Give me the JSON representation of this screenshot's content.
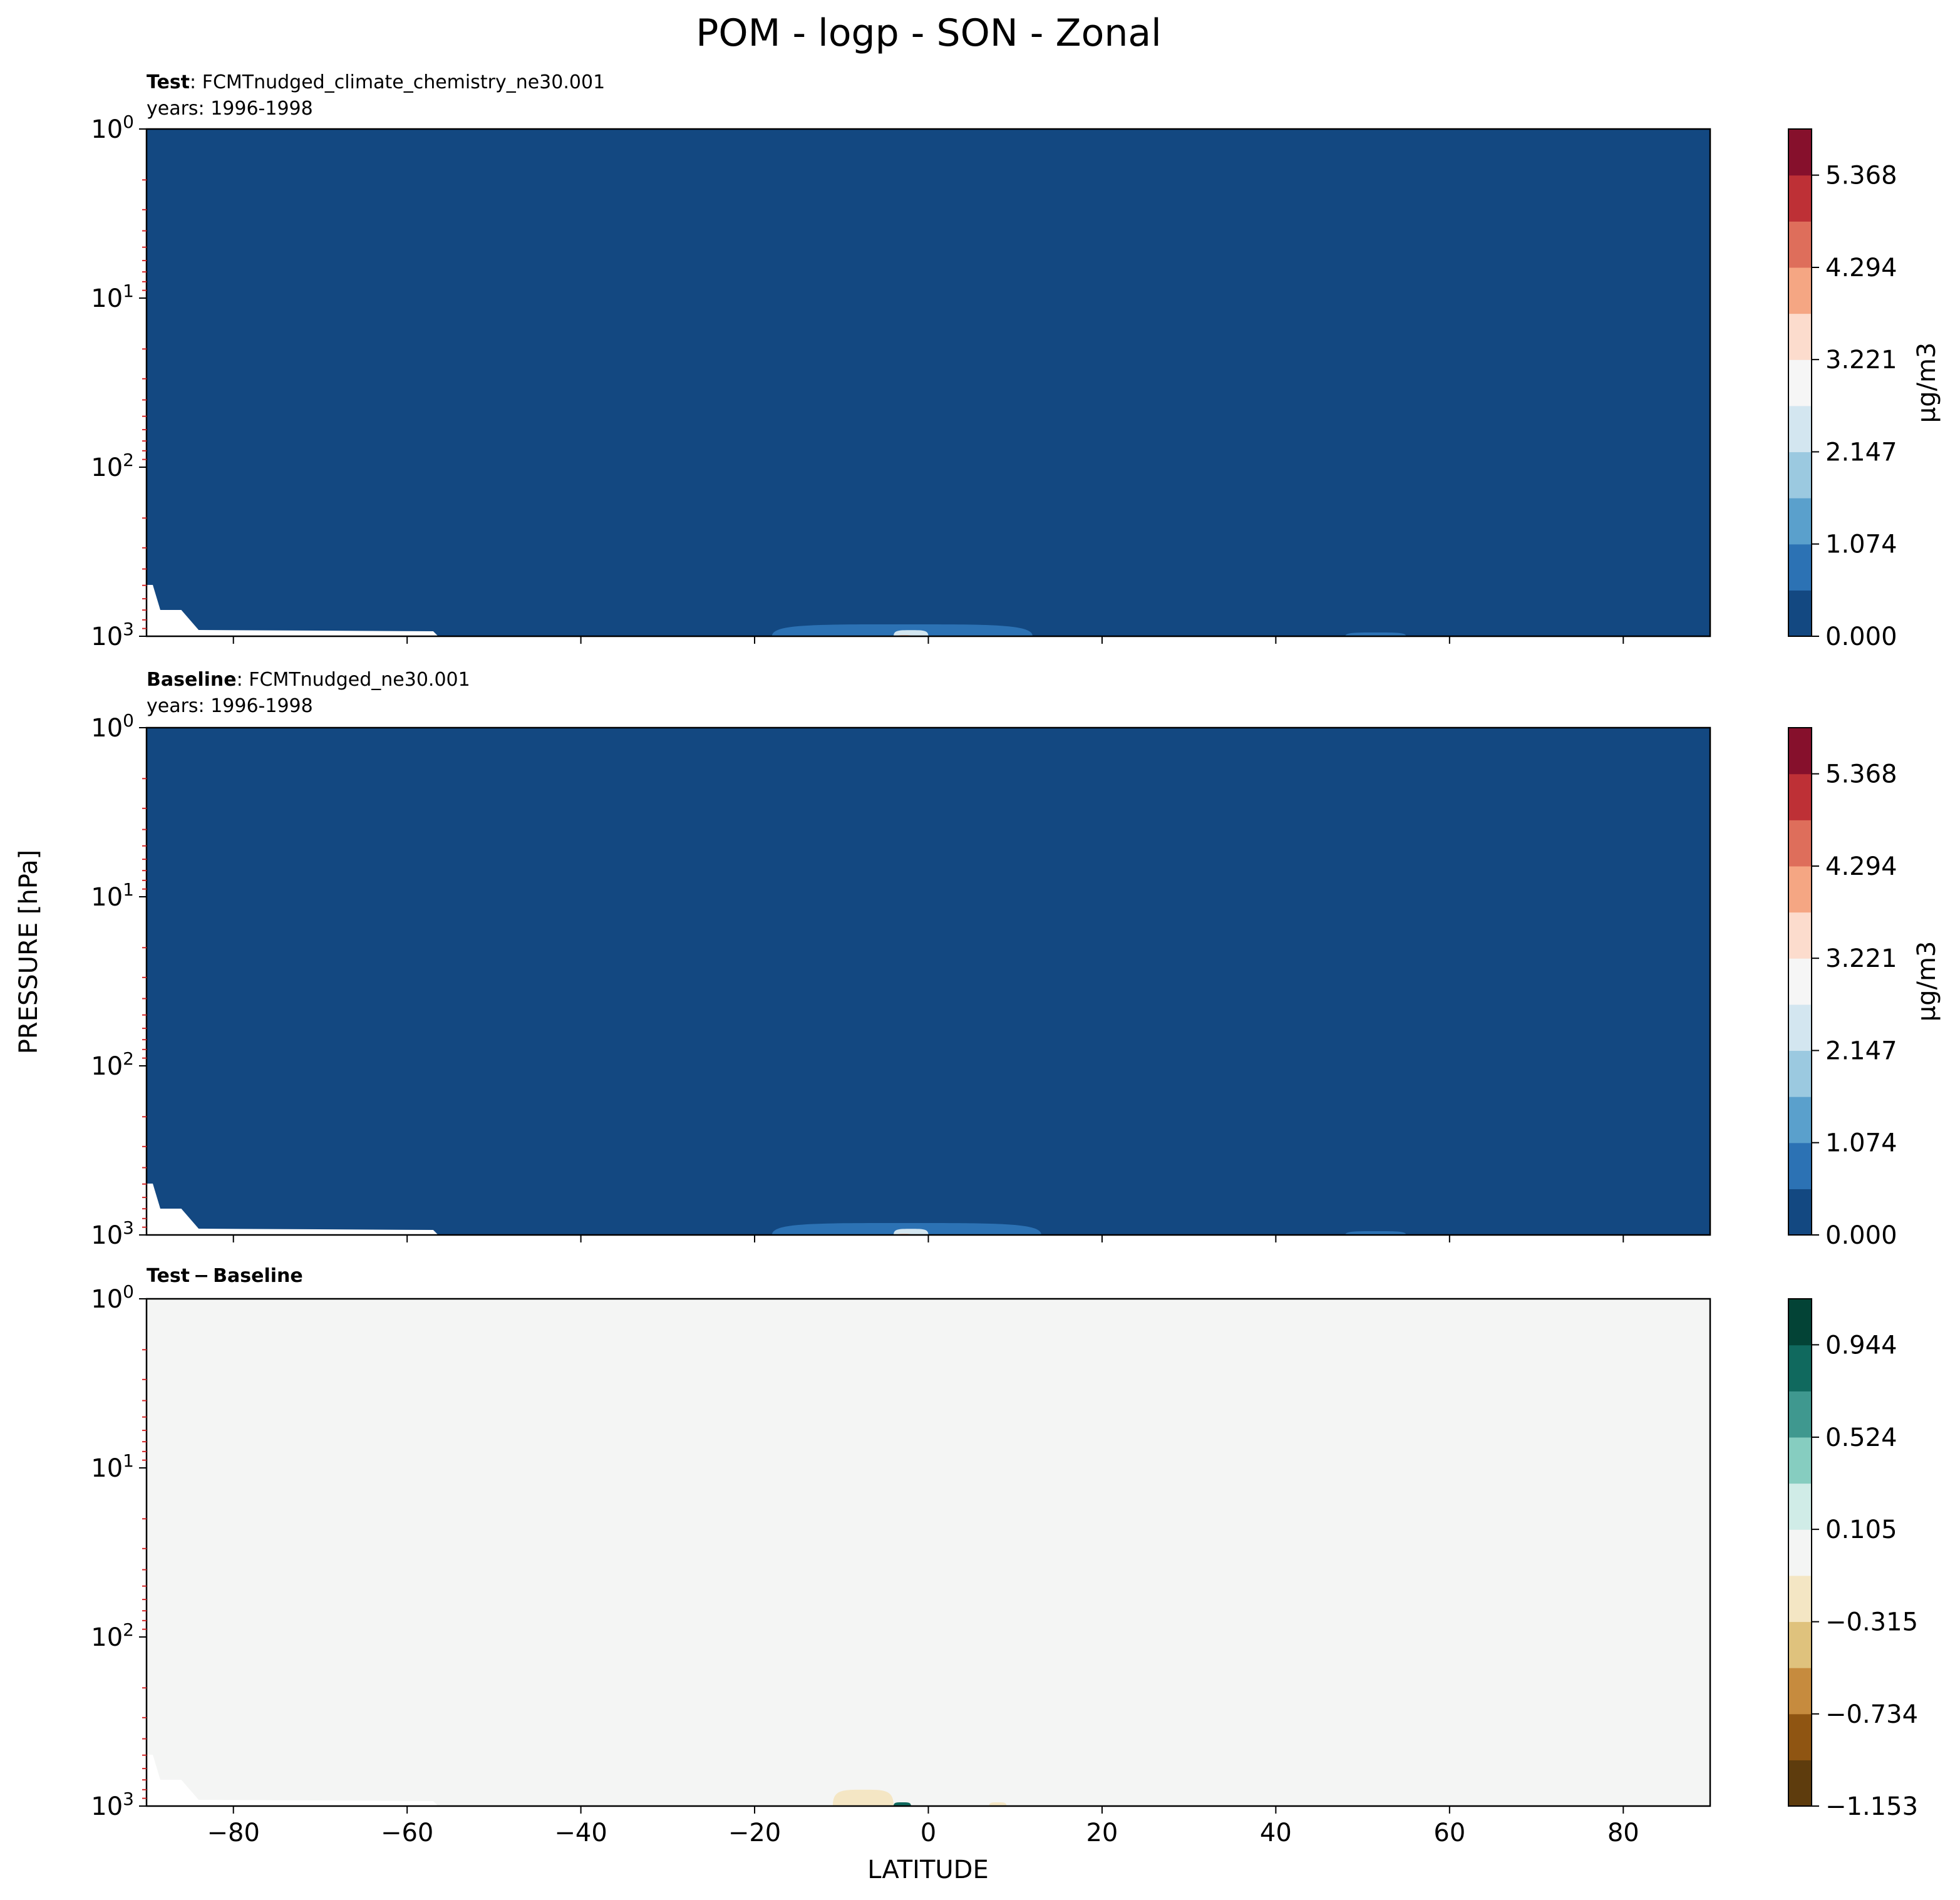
{
  "figure": {
    "suptitle": "POM - logp - SON - Zonal",
    "ylabel": "PRESSURE [hPa]",
    "xlabel": "LATITUDE"
  },
  "panels": [
    {
      "id": "test",
      "title_bold": "Test",
      "title_sep": ": ",
      "title_rest": "FCMTnudged_climate_chemistry_ne30.001",
      "subtitle": "years: 1996-1998",
      "colorbar_label": "μg/m3",
      "colorbar_ticks": [
        "0.000",
        "1.074",
        "2.147",
        "3.221",
        "4.294",
        "5.368"
      ]
    },
    {
      "id": "baseline",
      "title_bold": "Baseline",
      "title_sep": ": ",
      "title_rest": "FCMTnudged_ne30.001",
      "subtitle": "years: 1996-1998",
      "colorbar_label": "μg/m3",
      "colorbar_ticks": [
        "0.000",
        "1.074",
        "2.147",
        "3.221",
        "4.294",
        "5.368"
      ]
    },
    {
      "id": "diff",
      "title_bold": "Test − Baseline",
      "title_sep": "",
      "title_rest": "",
      "subtitle": "",
      "colorbar_label": "",
      "colorbar_ticks": [
        "−1.153",
        "−0.734",
        "−0.315",
        "0.105",
        "0.524",
        "0.944"
      ]
    }
  ],
  "colors": {
    "seq_levels": [
      "#134881",
      "#2c72b4",
      "#5aa0cc",
      "#9bc9e0",
      "#d3e6f0",
      "#f6f6f6",
      "#fcdccd",
      "#f5a683",
      "#de6e5b",
      "#be3036",
      "#86102c"
    ],
    "div_levels": [
      "#5e3c0d",
      "#8f5512",
      "#c68b3e",
      "#dfc27d",
      "#f4e6c4",
      "#f4f5f4",
      "#d0ece7",
      "#86cdc0",
      "#3f988f",
      "#10695e",
      "#034336"
    ],
    "minor_tick": "#d62728"
  },
  "chart_data": [
    {
      "type": "heatmap",
      "title": "Test: FCMTnudged_climate_chemistry_ne30.001",
      "subtitle": "years: 1996-1998",
      "xlabel": "LATITUDE",
      "ylabel": "PRESSURE [hPa]",
      "xlim": [
        -90,
        90
      ],
      "ylim": [
        1000,
        1
      ],
      "yscale": "log",
      "x_ticks": [
        -80,
        -60,
        -40,
        -20,
        0,
        20,
        40,
        60,
        80
      ],
      "y_ticks": [
        "10^0",
        "10^1",
        "10^2",
        "10^3"
      ],
      "x_ticklabels_shown": false,
      "colorbar_label": "μg/m3",
      "colorbar_ticks": [
        0.0,
        1.074,
        2.147,
        3.221,
        4.294,
        5.368
      ],
      "levels": [
        0.0,
        0.537,
        1.074,
        1.611,
        2.147,
        2.684,
        3.221,
        3.758,
        4.294,
        4.831,
        5.368,
        5.905
      ],
      "background_level_value": 0.27,
      "features": [
        {
          "lat_range": [
            -18,
            12
          ],
          "pressure_top_hPa": 850,
          "value": 0.8
        },
        {
          "lat_range": [
            -4,
            0
          ],
          "pressure_top_hPa": 920,
          "value": 2.4
        },
        {
          "lat_range": [
            -3.5,
            -2
          ],
          "pressure_top_hPa": 985,
          "value": 4.0
        },
        {
          "lat_range": [
            48,
            55
          ],
          "pressure_top_hPa": 950,
          "value": 0.8
        },
        {
          "lat_range": [
            -90,
            -57
          ],
          "pressure_top_hPa": 500,
          "value": null
        }
      ]
    },
    {
      "type": "heatmap",
      "title": "Baseline: FCMTnudged_ne30.001",
      "subtitle": "years: 1996-1998",
      "xlabel": "LATITUDE",
      "ylabel": "PRESSURE [hPa]",
      "xlim": [
        -90,
        90
      ],
      "ylim": [
        1000,
        1
      ],
      "yscale": "log",
      "x_ticks": [
        -80,
        -60,
        -40,
        -20,
        0,
        20,
        40,
        60,
        80
      ],
      "y_ticks": [
        "10^0",
        "10^1",
        "10^2",
        "10^3"
      ],
      "x_ticklabels_shown": false,
      "colorbar_label": "μg/m3",
      "colorbar_ticks": [
        0.0,
        1.074,
        2.147,
        3.221,
        4.294,
        5.368
      ],
      "levels": [
        0.0,
        0.537,
        1.074,
        1.611,
        2.147,
        2.684,
        3.221,
        3.758,
        4.294,
        4.831,
        5.368,
        5.905
      ],
      "background_level_value": 0.27,
      "features": [
        {
          "lat_range": [
            -18,
            13
          ],
          "pressure_top_hPa": 850,
          "value": 0.8
        },
        {
          "lat_range": [
            -4,
            0
          ],
          "pressure_top_hPa": 920,
          "value": 2.4
        },
        {
          "lat_range": [
            -3.5,
            -2
          ],
          "pressure_top_hPa": 985,
          "value": 4.0
        },
        {
          "lat_range": [
            48,
            55
          ],
          "pressure_top_hPa": 950,
          "value": 0.8
        },
        {
          "lat_range": [
            -90,
            -57
          ],
          "pressure_top_hPa": 500,
          "value": null
        }
      ]
    },
    {
      "type": "heatmap",
      "title": "Test − Baseline",
      "xlabel": "LATITUDE",
      "ylabel": "PRESSURE [hPa]",
      "xlim": [
        -90,
        90
      ],
      "ylim": [
        1000,
        1
      ],
      "yscale": "log",
      "x_ticks": [
        -80,
        -60,
        -40,
        -20,
        0,
        20,
        40,
        60,
        80
      ],
      "x_ticklabels": [
        "−80",
        "−60",
        "−40",
        "−20",
        "0",
        "20",
        "40",
        "60",
        "80"
      ],
      "y_ticks": [
        "10^0",
        "10^1",
        "10^2",
        "10^3"
      ],
      "colorbar_ticks": [
        -1.153,
        -0.734,
        -0.315,
        0.105,
        0.524,
        0.944
      ],
      "levels": [
        -1.153,
        -0.944,
        -0.734,
        -0.524,
        -0.315,
        -0.105,
        0.105,
        0.315,
        0.524,
        0.734,
        0.944,
        1.153
      ],
      "background_level_value": 0.0,
      "features": [
        {
          "lat_range": [
            -11,
            -4
          ],
          "pressure_top_hPa": 800,
          "value": -0.2
        },
        {
          "lat_range": [
            -4,
            -2
          ],
          "pressure_top_hPa": 950,
          "value": 0.9
        },
        {
          "lat_range": [
            7,
            9
          ],
          "pressure_top_hPa": 950,
          "value": -0.2
        },
        {
          "lat_range": [
            -90,
            -57
          ],
          "pressure_top_hPa": 500,
          "value": null
        }
      ]
    }
  ]
}
